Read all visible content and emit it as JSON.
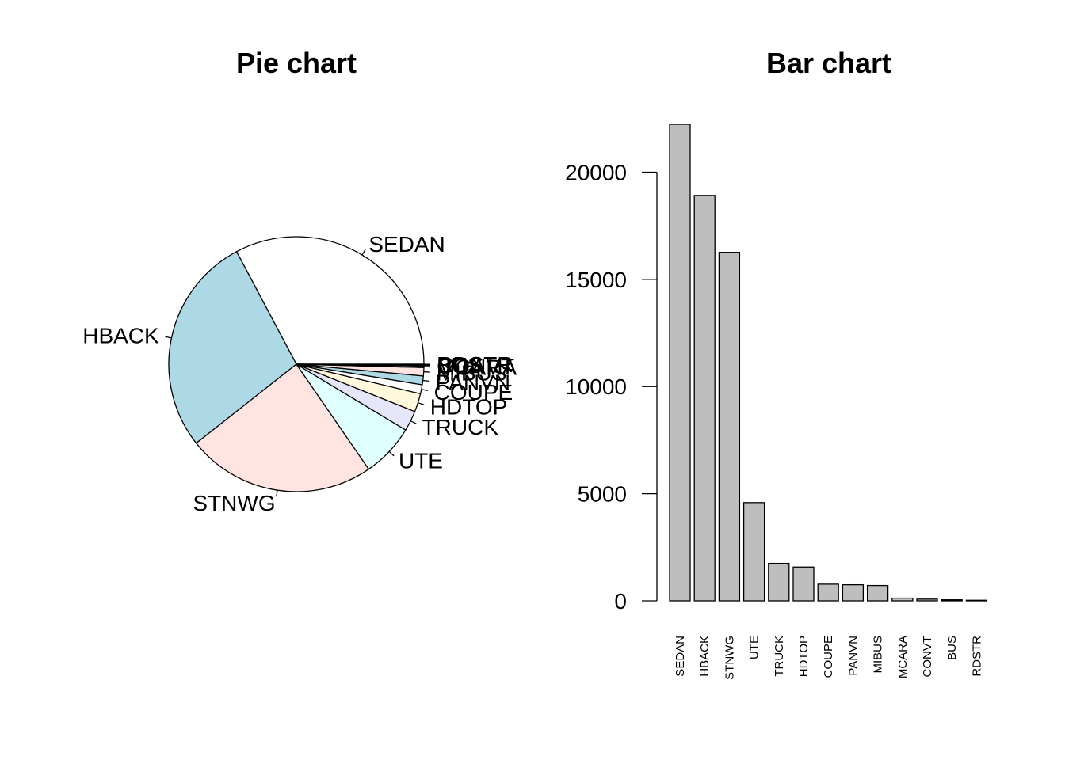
{
  "chart_data": [
    {
      "type": "pie",
      "title": "Pie chart",
      "categories": [
        "SEDAN",
        "HBACK",
        "STNWG",
        "UTE",
        "TRUCK",
        "HDTOP",
        "COUPE",
        "PANVN",
        "MIBUS",
        "MCARA",
        "CONVT",
        "BUS",
        "RDSTR"
      ],
      "values": [
        22233,
        18915,
        16261,
        4586,
        1750,
        1579,
        780,
        752,
        717,
        127,
        81,
        48,
        27
      ],
      "colors": [
        "#ffffff",
        "#add8e6",
        "#ffe4e1",
        "#e0ffff",
        "#e6e6fa",
        "#fff8dc",
        "#ffffff",
        "#add8e6",
        "#ffe4e1",
        "#e0ffff",
        "#e6e6fa",
        "#fff8dc",
        "#ffffff"
      ],
      "start": "counterclockwise from 3 o'clock"
    },
    {
      "type": "bar",
      "title": "Bar chart",
      "categories": [
        "SEDAN",
        "HBACK",
        "STNWG",
        "UTE",
        "TRUCK",
        "HDTOP",
        "COUPE",
        "PANVN",
        "MIBUS",
        "MCARA",
        "CONVT",
        "BUS",
        "RDSTR"
      ],
      "values": [
        22233,
        18915,
        16261,
        4586,
        1750,
        1579,
        780,
        752,
        717,
        127,
        81,
        48,
        27
      ],
      "yticks": [
        0,
        5000,
        10000,
        15000,
        20000
      ],
      "ylim": [
        0,
        22233
      ],
      "bar_color": "#bebebe",
      "xlabel": "",
      "ylabel": ""
    }
  ]
}
